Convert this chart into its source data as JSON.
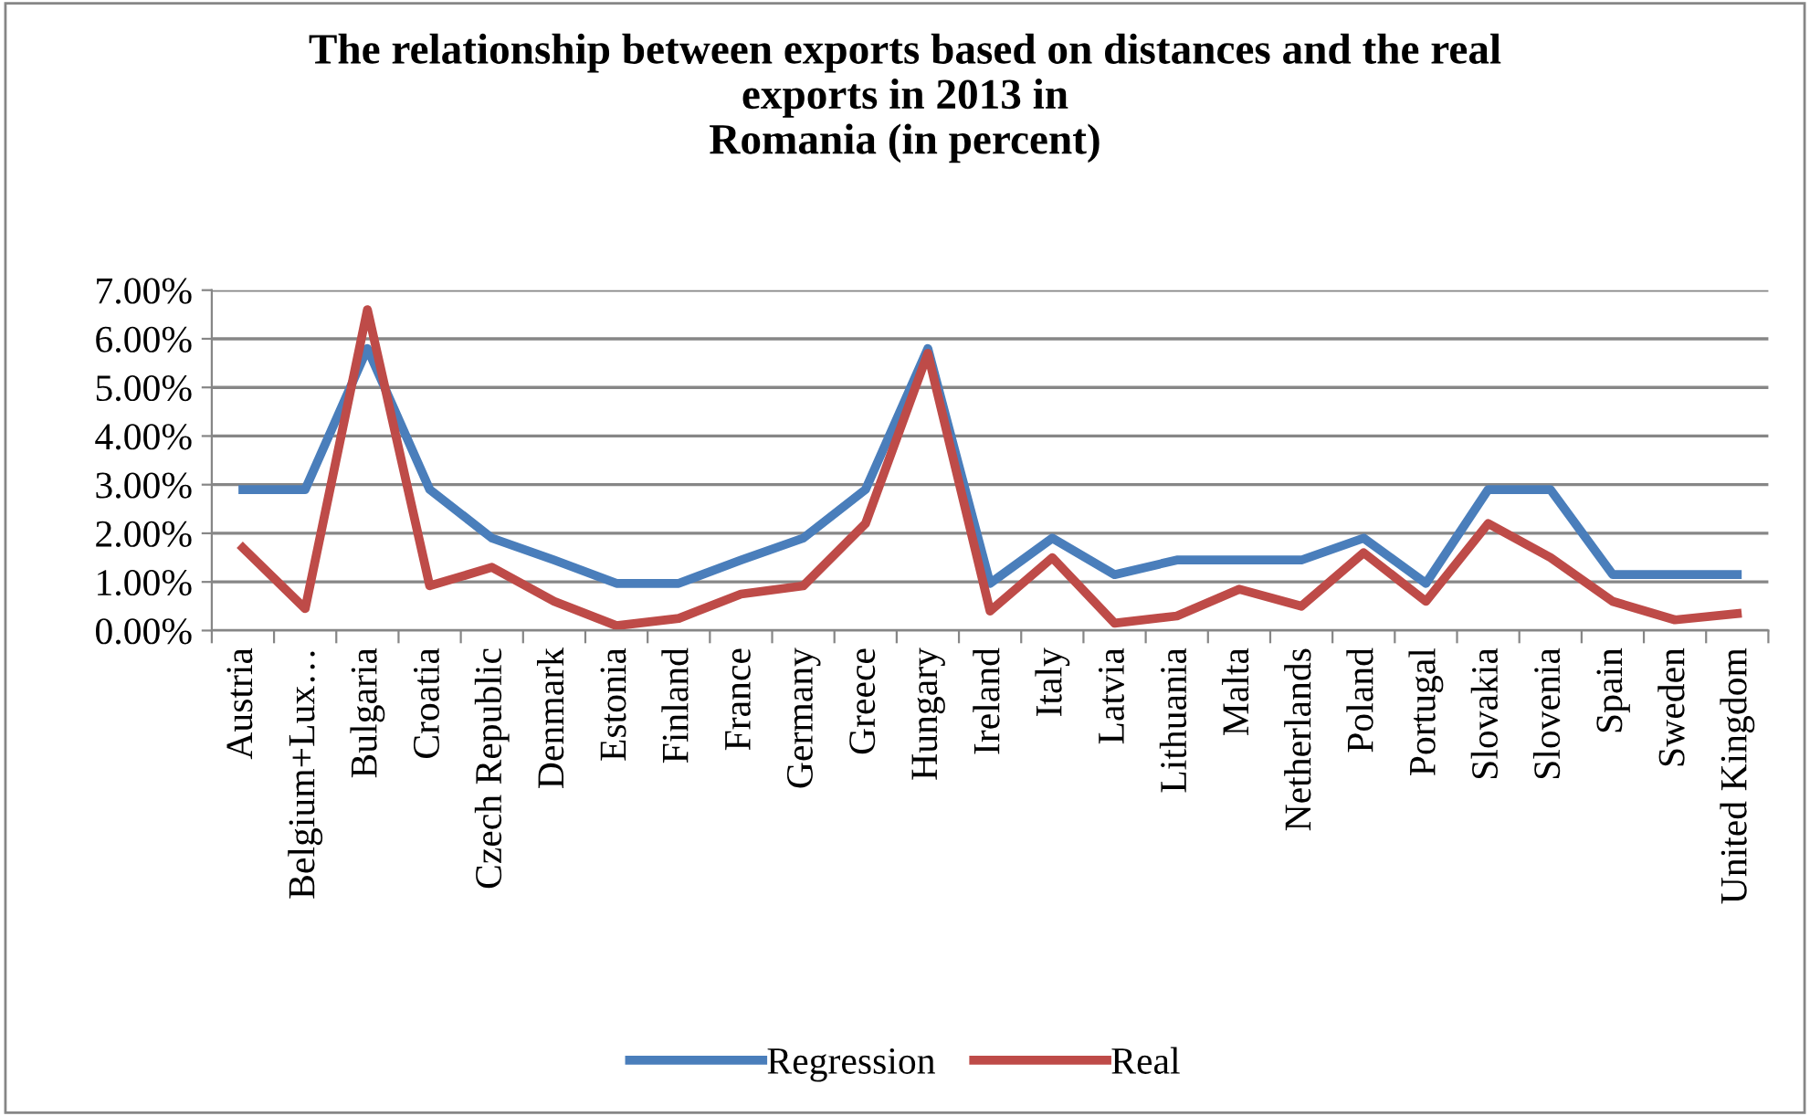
{
  "chart_data": {
    "type": "line",
    "title": "The relationship between exports based on distances and the real\nexports in 2013 in\nRomania (in percent)",
    "categories": [
      "Austria",
      "Belgium+Lux…",
      "Bulgaria",
      "Croatia",
      "Czech Republic",
      "Denmark",
      "Estonia",
      "Finland",
      "France",
      "Germany",
      "Greece",
      "Hungary",
      "Ireland",
      "Italy",
      "Latvia",
      "Lithuania",
      "Malta",
      "Netherlands",
      "Poland",
      "Portugal",
      "Slovakia",
      "Slovenia",
      "Spain",
      "Sweden",
      "United Kingdom"
    ],
    "series": [
      {
        "name": "Regression",
        "color": "#4a7ebb",
        "values": [
          2.9,
          2.9,
          5.8,
          2.9,
          1.9,
          1.45,
          0.97,
          0.97,
          1.45,
          1.9,
          2.9,
          5.8,
          0.97,
          1.9,
          1.15,
          1.45,
          1.45,
          1.45,
          1.9,
          0.97,
          2.9,
          2.9,
          1.15,
          1.15,
          1.15
        ]
      },
      {
        "name": "Real",
        "color": "#be4b48",
        "values": [
          1.7,
          0.45,
          6.6,
          0.92,
          1.3,
          0.6,
          0.1,
          0.25,
          0.75,
          0.92,
          2.2,
          5.7,
          0.4,
          1.5,
          0.15,
          0.3,
          0.85,
          0.5,
          1.6,
          0.6,
          2.2,
          1.5,
          0.6,
          0.22,
          0.35
        ]
      }
    ],
    "ylim": [
      0,
      7
    ],
    "yticks": [
      {
        "value": 0,
        "label": "0.00%"
      },
      {
        "value": 1,
        "label": "1.00%"
      },
      {
        "value": 2,
        "label": "2.00%"
      },
      {
        "value": 3,
        "label": "3.00%"
      },
      {
        "value": 4,
        "label": "4.00%"
      },
      {
        "value": 5,
        "label": "5.00%"
      },
      {
        "value": 6,
        "label": "6.00%"
      },
      {
        "value": 7,
        "label": "7.00%"
      }
    ],
    "grid": "y",
    "legend": "bottom",
    "marker": "none",
    "line_style": "solid"
  }
}
